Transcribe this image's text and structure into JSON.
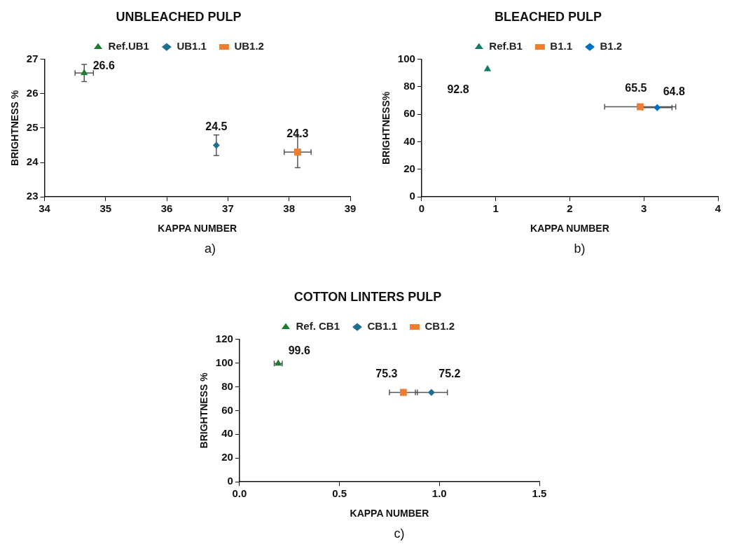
{
  "chart_data": [
    {
      "type": "scatter",
      "title": "UNBLEACHED PULP",
      "xlabel": "KAPPA NUMBER",
      "ylabel": "BRIGHTNESS %",
      "annotations": [
        "a)"
      ],
      "legend": "top",
      "grid": false,
      "data_labels": true,
      "xlim": [
        34,
        39
      ],
      "xticks": [
        34,
        35,
        36,
        37,
        38,
        39
      ],
      "ylim": [
        23,
        27
      ],
      "yticks": [
        23,
        24,
        25,
        26,
        27
      ],
      "series": [
        {
          "name": "Ref.UB1",
          "color": "#1e7b2f",
          "marker": "triangle",
          "x": [
            34.65
          ],
          "values": [
            26.6
          ],
          "errors": [
            0.25
          ],
          "xerrors": [
            0.15
          ]
        },
        {
          "name": "UB1.1",
          "color": "#1f6e8c",
          "marker": "diamond",
          "x": [
            36.81
          ],
          "values": [
            24.5
          ],
          "errors": [
            0.3
          ],
          "xerrors": [
            null
          ]
        },
        {
          "name": "UB1.2",
          "color": "#ed7d31",
          "marker": "square",
          "x": [
            38.14
          ],
          "values": [
            24.3
          ],
          "errors": [
            0.45
          ],
          "xerrors": [
            0.22
          ]
        }
      ]
    },
    {
      "type": "scatter",
      "title": "BLEACHED PULP",
      "xlabel": "KAPPA NUMBER",
      "ylabel": "BRIGHTNESS%",
      "annotations": [
        "b)"
      ],
      "legend": "top",
      "grid": false,
      "data_labels": true,
      "xlim": [
        0,
        4
      ],
      "xticks": [
        0,
        1,
        2,
        3,
        4
      ],
      "ylim": [
        0,
        100
      ],
      "yticks": [
        0,
        20,
        40,
        60,
        80,
        100
      ],
      "series": [
        {
          "name": "Ref.B1",
          "color": "#15796a",
          "marker": "triangle",
          "x": [
            0.89
          ],
          "values": [
            92.8
          ]
        },
        {
          "name": "B1.1",
          "color": "#ed7d31",
          "marker": "square",
          "x": [
            2.95
          ],
          "values": [
            65.5
          ],
          "xerrors": [
            0.48
          ]
        },
        {
          "name": "B1.2",
          "color": "#0070c0",
          "marker": "diamond",
          "x": [
            3.18
          ],
          "values": [
            64.8
          ],
          "xerrors": [
            0.2
          ]
        }
      ]
    },
    {
      "type": "scatter",
      "title": "COTTON LINTERS PULP",
      "xlabel": "KAPPA NUMBER",
      "ylabel": "BRIGHTNESS %",
      "annotations": [
        "c)"
      ],
      "legend": "top",
      "grid": false,
      "data_labels": true,
      "xlim": [
        0,
        1.5
      ],
      "xticks": [
        {
          "value": 0,
          "label": "0.0"
        },
        0.5,
        {
          "value": 1,
          "label": "1.0"
        },
        1.5
      ],
      "ylim": [
        0,
        120
      ],
      "yticks": [
        0,
        20,
        40,
        60,
        80,
        100,
        120
      ],
      "series": [
        {
          "name": "Ref. CB1",
          "color": "#1e7b2f",
          "marker": "triangle",
          "x": [
            0.194
          ],
          "values": [
            99.6
          ],
          "xerrors": [
            0.02
          ]
        },
        {
          "name": "CB1.1",
          "color": "#1f6e8c",
          "marker": "diamond",
          "x": [
            0.96
          ],
          "values": [
            75.2
          ],
          "xerrors": [
            0.08
          ]
        },
        {
          "name": "CB1.2",
          "color": "#ed7d31",
          "marker": "square",
          "x": [
            0.82
          ],
          "values": [
            75.3
          ],
          "xerrors": [
            0.07
          ]
        }
      ]
    }
  ]
}
